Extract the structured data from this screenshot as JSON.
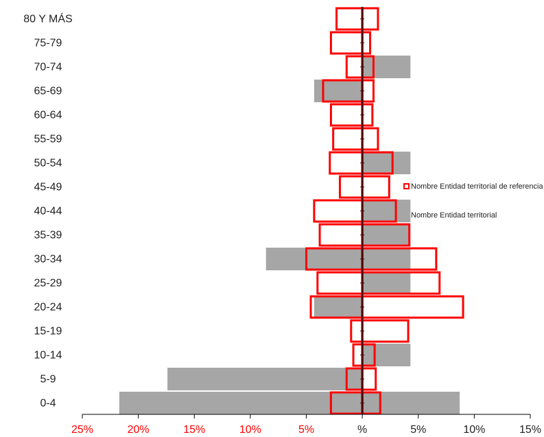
{
  "chart_data": {
    "type": "bar",
    "categories": [
      "80 Y MÁS",
      "75-79",
      "70-74",
      "65-69",
      "60-64",
      "55-59",
      "50-54",
      "45-49",
      "40-44",
      "35-39",
      "30-34",
      "25-29",
      "20-24",
      "15-19",
      "10-14",
      "5-9",
      "0-4"
    ],
    "x_tick_labels": [
      "25%",
      "20%",
      "15%",
      "10%",
      "5%",
      "%",
      "5%",
      "10%",
      "15%"
    ],
    "x_tick_values": [
      -25,
      -20,
      -15,
      -10,
      -5,
      0,
      5,
      10,
      15
    ],
    "xlim": [
      -25,
      15
    ],
    "series": [
      {
        "name": "Nombre Entidad territorial",
        "left_values": [
          0,
          0,
          0,
          4.3,
          0,
          0,
          0,
          0,
          0,
          0,
          8.6,
          0,
          4.3,
          0,
          0,
          17.4,
          21.7
        ],
        "right_values": [
          0,
          0,
          4.3,
          0,
          0,
          0,
          4.3,
          0,
          4.3,
          4.3,
          4.3,
          4.3,
          0,
          0,
          4.3,
          0,
          8.7
        ]
      },
      {
        "name": "Nombre Entidad territorial de referencia",
        "left_values": [
          2.3,
          2.8,
          1.4,
          3.5,
          2.8,
          2.6,
          2.9,
          2.0,
          4.3,
          3.8,
          5.0,
          4.0,
          4.6,
          1.0,
          0.8,
          1.4,
          2.8
        ],
        "right_values": [
          1.4,
          0.7,
          1.0,
          1.0,
          0.9,
          1.4,
          2.7,
          2.4,
          3.0,
          4.2,
          6.6,
          6.9,
          9.0,
          4.1,
          1.1,
          1.2,
          1.6
        ]
      }
    ],
    "legend": {
      "position": "right",
      "items": [
        {
          "label": "Nombre Entidad territorial de referencia",
          "style": "outline",
          "color": "#ff0000"
        },
        {
          "label": "Nombre Entidad territorial",
          "style": "filled",
          "color": "#a6a6a6"
        }
      ]
    },
    "colors": {
      "filled": "#a6a6a6",
      "outline": "#ff0000",
      "center_line": "#4d0000",
      "axis": "#000000",
      "left_tick_label": "#ff0000",
      "right_tick_label": "#222222"
    },
    "grid": false
  }
}
